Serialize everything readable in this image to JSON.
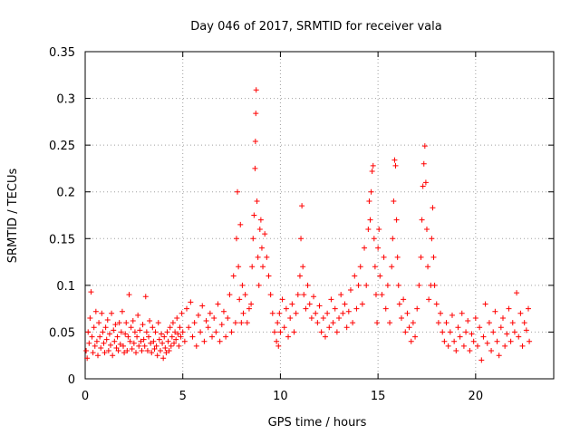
{
  "chart_data": {
    "type": "scatter",
    "title": "Day 046 of 2017, SRMTID for receiver vala",
    "xlabel": "GPS time / hours",
    "ylabel": "SRMTID / TECUs",
    "xlim": [
      0,
      24
    ],
    "ylim": [
      0,
      0.35
    ],
    "grid": true,
    "marker": "+",
    "point_color": "#ff0000",
    "x_ticks": [
      "0",
      "5",
      "10",
      "15",
      "20"
    ],
    "y_ticks": [
      "0",
      "0.05",
      "0.1",
      "0.15",
      "0.2",
      "0.25",
      "0.3",
      "0.35"
    ],
    "series": [
      {
        "name": "SRMTID",
        "points": [
          [
            0.05,
            0.03
          ],
          [
            0.1,
            0.022
          ],
          [
            0.15,
            0.05
          ],
          [
            0.2,
            0.038
          ],
          [
            0.25,
            0.065
          ],
          [
            0.3,
            0.093
          ],
          [
            0.35,
            0.045
          ],
          [
            0.4,
            0.028
          ],
          [
            0.45,
            0.055
          ],
          [
            0.5,
            0.035
          ],
          [
            0.55,
            0.072
          ],
          [
            0.6,
            0.04
          ],
          [
            0.65,
            0.025
          ],
          [
            0.7,
            0.06
          ],
          [
            0.75,
            0.045
          ],
          [
            0.8,
            0.033
          ],
          [
            0.85,
            0.07
          ],
          [
            0.9,
            0.05
          ],
          [
            0.95,
            0.038
          ],
          [
            1.0,
            0.028
          ],
          [
            1.05,
            0.055
          ],
          [
            1.1,
            0.042
          ],
          [
            1.15,
            0.063
          ],
          [
            1.2,
            0.03
          ],
          [
            1.25,
            0.048
          ],
          [
            1.3,
            0.036
          ],
          [
            1.35,
            0.07
          ],
          [
            1.4,
            0.025
          ],
          [
            1.45,
            0.052
          ],
          [
            1.5,
            0.04
          ],
          [
            1.55,
            0.058
          ],
          [
            1.6,
            0.033
          ],
          [
            1.65,
            0.045
          ],
          [
            1.7,
            0.03
          ],
          [
            1.75,
            0.06
          ],
          [
            1.8,
            0.037
          ],
          [
            1.85,
            0.05
          ],
          [
            1.9,
            0.072
          ],
          [
            1.95,
            0.035
          ],
          [
            2.0,
            0.028
          ],
          [
            2.05,
            0.048
          ],
          [
            2.1,
            0.06
          ],
          [
            2.15,
            0.03
          ],
          [
            2.2,
            0.045
          ],
          [
            2.25,
            0.09
          ],
          [
            2.3,
            0.04
          ],
          [
            2.35,
            0.055
          ],
          [
            2.4,
            0.032
          ],
          [
            2.45,
            0.062
          ],
          [
            2.5,
            0.038
          ],
          [
            2.55,
            0.05
          ],
          [
            2.6,
            0.028
          ],
          [
            2.65,
            0.045
          ],
          [
            2.7,
            0.068
          ],
          [
            2.75,
            0.035
          ],
          [
            2.8,
            0.052
          ],
          [
            2.85,
            0.04
          ],
          [
            2.9,
            0.03
          ],
          [
            2.95,
            0.058
          ],
          [
            3.0,
            0.042
          ],
          [
            3.05,
            0.035
          ],
          [
            3.1,
            0.088
          ],
          [
            3.15,
            0.05
          ],
          [
            3.2,
            0.03
          ],
          [
            3.25,
            0.045
          ],
          [
            3.3,
            0.062
          ],
          [
            3.35,
            0.038
          ],
          [
            3.4,
            0.028
          ],
          [
            3.45,
            0.055
          ],
          [
            3.5,
            0.04
          ],
          [
            3.55,
            0.032
          ],
          [
            3.6,
            0.05
          ],
          [
            3.65,
            0.035
          ],
          [
            3.7,
            0.025
          ],
          [
            3.75,
            0.06
          ],
          [
            3.8,
            0.042
          ],
          [
            3.85,
            0.03
          ],
          [
            3.9,
            0.048
          ],
          [
            3.95,
            0.038
          ],
          [
            4.0,
            0.022
          ],
          [
            4.05,
            0.045
          ],
          [
            4.1,
            0.033
          ],
          [
            4.15,
            0.028
          ],
          [
            4.2,
            0.05
          ],
          [
            4.25,
            0.04
          ],
          [
            4.3,
            0.03
          ],
          [
            4.35,
            0.055
          ],
          [
            4.4,
            0.035
          ],
          [
            4.45,
            0.045
          ],
          [
            4.5,
            0.06
          ],
          [
            4.55,
            0.038
          ],
          [
            4.6,
            0.05
          ],
          [
            4.65,
            0.042
          ],
          [
            4.7,
            0.065
          ],
          [
            4.75,
            0.048
          ],
          [
            4.8,
            0.035
          ],
          [
            4.85,
            0.055
          ],
          [
            4.9,
            0.045
          ],
          [
            4.95,
            0.07
          ],
          [
            5.0,
            0.05
          ],
          [
            5.1,
            0.04
          ],
          [
            5.2,
            0.075
          ],
          [
            5.3,
            0.055
          ],
          [
            5.4,
            0.082
          ],
          [
            5.5,
            0.045
          ],
          [
            5.6,
            0.06
          ],
          [
            5.7,
            0.035
          ],
          [
            5.8,
            0.068
          ],
          [
            5.9,
            0.05
          ],
          [
            6.0,
            0.078
          ],
          [
            6.1,
            0.04
          ],
          [
            6.2,
            0.062
          ],
          [
            6.3,
            0.055
          ],
          [
            6.4,
            0.07
          ],
          [
            6.5,
            0.045
          ],
          [
            6.6,
            0.065
          ],
          [
            6.7,
            0.05
          ],
          [
            6.8,
            0.08
          ],
          [
            6.9,
            0.04
          ],
          [
            7.0,
            0.058
          ],
          [
            7.1,
            0.072
          ],
          [
            7.2,
            0.045
          ],
          [
            7.3,
            0.065
          ],
          [
            7.4,
            0.09
          ],
          [
            7.5,
            0.05
          ],
          [
            7.6,
            0.11
          ],
          [
            7.7,
            0.06
          ],
          [
            7.75,
            0.15
          ],
          [
            7.8,
            0.2
          ],
          [
            7.85,
            0.12
          ],
          [
            7.9,
            0.085
          ],
          [
            7.95,
            0.165
          ],
          [
            8.0,
            0.06
          ],
          [
            8.05,
            0.1
          ],
          [
            8.1,
            0.07
          ],
          [
            8.2,
            0.09
          ],
          [
            8.3,
            0.06
          ],
          [
            8.4,
            0.075
          ],
          [
            8.5,
            0.08
          ],
          [
            8.55,
            0.12
          ],
          [
            8.6,
            0.15
          ],
          [
            8.65,
            0.175
          ],
          [
            8.7,
            0.225
          ],
          [
            8.72,
            0.254
          ],
          [
            8.74,
            0.284
          ],
          [
            8.76,
            0.309
          ],
          [
            8.8,
            0.19
          ],
          [
            8.85,
            0.13
          ],
          [
            8.9,
            0.1
          ],
          [
            8.95,
            0.16
          ],
          [
            9.0,
            0.17
          ],
          [
            9.05,
            0.14
          ],
          [
            9.1,
            0.12
          ],
          [
            9.2,
            0.155
          ],
          [
            9.3,
            0.13
          ],
          [
            9.4,
            0.11
          ],
          [
            9.5,
            0.09
          ],
          [
            9.6,
            0.07
          ],
          [
            9.7,
            0.05
          ],
          [
            9.8,
            0.04
          ],
          [
            9.85,
            0.06
          ],
          [
            9.9,
            0.035
          ],
          [
            9.95,
            0.07
          ],
          [
            10.0,
            0.05
          ],
          [
            10.1,
            0.085
          ],
          [
            10.2,
            0.055
          ],
          [
            10.3,
            0.075
          ],
          [
            10.4,
            0.045
          ],
          [
            10.5,
            0.065
          ],
          [
            10.6,
            0.08
          ],
          [
            10.7,
            0.05
          ],
          [
            10.8,
            0.07
          ],
          [
            10.9,
            0.09
          ],
          [
            11.0,
            0.11
          ],
          [
            11.05,
            0.15
          ],
          [
            11.1,
            0.185
          ],
          [
            11.15,
            0.12
          ],
          [
            11.2,
            0.09
          ],
          [
            11.3,
            0.075
          ],
          [
            11.4,
            0.1
          ],
          [
            11.5,
            0.08
          ],
          [
            11.6,
            0.065
          ],
          [
            11.7,
            0.088
          ],
          [
            11.8,
            0.07
          ],
          [
            11.9,
            0.06
          ],
          [
            12.0,
            0.078
          ],
          [
            12.1,
            0.05
          ],
          [
            12.2,
            0.065
          ],
          [
            12.3,
            0.045
          ],
          [
            12.4,
            0.07
          ],
          [
            12.5,
            0.055
          ],
          [
            12.6,
            0.085
          ],
          [
            12.7,
            0.06
          ],
          [
            12.8,
            0.075
          ],
          [
            12.9,
            0.05
          ],
          [
            13.0,
            0.065
          ],
          [
            13.1,
            0.09
          ],
          [
            13.2,
            0.07
          ],
          [
            13.3,
            0.08
          ],
          [
            13.4,
            0.055
          ],
          [
            13.5,
            0.072
          ],
          [
            13.6,
            0.095
          ],
          [
            13.7,
            0.06
          ],
          [
            13.8,
            0.11
          ],
          [
            13.9,
            0.075
          ],
          [
            14.0,
            0.1
          ],
          [
            14.1,
            0.12
          ],
          [
            14.2,
            0.08
          ],
          [
            14.3,
            0.14
          ],
          [
            14.4,
            0.1
          ],
          [
            14.5,
            0.16
          ],
          [
            14.55,
            0.19
          ],
          [
            14.6,
            0.17
          ],
          [
            14.65,
            0.2
          ],
          [
            14.7,
            0.222
          ],
          [
            14.75,
            0.228
          ],
          [
            14.8,
            0.15
          ],
          [
            14.85,
            0.12
          ],
          [
            14.9,
            0.09
          ],
          [
            14.95,
            0.06
          ],
          [
            15.0,
            0.14
          ],
          [
            15.05,
            0.16
          ],
          [
            15.1,
            0.11
          ],
          [
            15.2,
            0.09
          ],
          [
            15.3,
            0.13
          ],
          [
            15.4,
            0.075
          ],
          [
            15.5,
            0.1
          ],
          [
            15.6,
            0.06
          ],
          [
            15.7,
            0.12
          ],
          [
            15.75,
            0.15
          ],
          [
            15.8,
            0.19
          ],
          [
            15.85,
            0.234
          ],
          [
            15.9,
            0.228
          ],
          [
            15.95,
            0.17
          ],
          [
            16.0,
            0.13
          ],
          [
            16.05,
            0.1
          ],
          [
            16.1,
            0.08
          ],
          [
            16.2,
            0.065
          ],
          [
            16.3,
            0.085
          ],
          [
            16.4,
            0.05
          ],
          [
            16.5,
            0.07
          ],
          [
            16.6,
            0.055
          ],
          [
            16.7,
            0.04
          ],
          [
            16.8,
            0.06
          ],
          [
            16.9,
            0.045
          ],
          [
            17.0,
            0.075
          ],
          [
            17.1,
            0.1
          ],
          [
            17.2,
            0.13
          ],
          [
            17.25,
            0.17
          ],
          [
            17.3,
            0.206
          ],
          [
            17.35,
            0.23
          ],
          [
            17.4,
            0.249
          ],
          [
            17.45,
            0.21
          ],
          [
            17.5,
            0.16
          ],
          [
            17.55,
            0.12
          ],
          [
            17.6,
            0.085
          ],
          [
            17.7,
            0.1
          ],
          [
            17.75,
            0.15
          ],
          [
            17.8,
            0.183
          ],
          [
            17.85,
            0.13
          ],
          [
            17.9,
            0.1
          ],
          [
            18.0,
            0.08
          ],
          [
            18.1,
            0.06
          ],
          [
            18.2,
            0.07
          ],
          [
            18.3,
            0.05
          ],
          [
            18.4,
            0.04
          ],
          [
            18.5,
            0.06
          ],
          [
            18.6,
            0.035
          ],
          [
            18.7,
            0.05
          ],
          [
            18.8,
            0.068
          ],
          [
            18.9,
            0.04
          ],
          [
            19.0,
            0.03
          ],
          [
            19.1,
            0.055
          ],
          [
            19.2,
            0.045
          ],
          [
            19.3,
            0.07
          ],
          [
            19.4,
            0.035
          ],
          [
            19.5,
            0.05
          ],
          [
            19.6,
            0.062
          ],
          [
            19.7,
            0.03
          ],
          [
            19.8,
            0.048
          ],
          [
            19.9,
            0.04
          ],
          [
            20.0,
            0.065
          ],
          [
            20.1,
            0.035
          ],
          [
            20.2,
            0.055
          ],
          [
            20.3,
            0.02
          ],
          [
            20.4,
            0.045
          ],
          [
            20.5,
            0.08
          ],
          [
            20.6,
            0.038
          ],
          [
            20.7,
            0.06
          ],
          [
            20.8,
            0.03
          ],
          [
            20.9,
            0.05
          ],
          [
            21.0,
            0.072
          ],
          [
            21.1,
            0.04
          ],
          [
            21.2,
            0.025
          ],
          [
            21.3,
            0.055
          ],
          [
            21.4,
            0.065
          ],
          [
            21.5,
            0.035
          ],
          [
            21.6,
            0.048
          ],
          [
            21.7,
            0.075
          ],
          [
            21.8,
            0.04
          ],
          [
            21.9,
            0.06
          ],
          [
            22.0,
            0.05
          ],
          [
            22.1,
            0.092
          ],
          [
            22.2,
            0.045
          ],
          [
            22.3,
            0.07
          ],
          [
            22.4,
            0.035
          ],
          [
            22.5,
            0.06
          ],
          [
            22.6,
            0.052
          ],
          [
            22.7,
            0.075
          ],
          [
            22.75,
            0.04
          ]
        ]
      }
    ]
  }
}
